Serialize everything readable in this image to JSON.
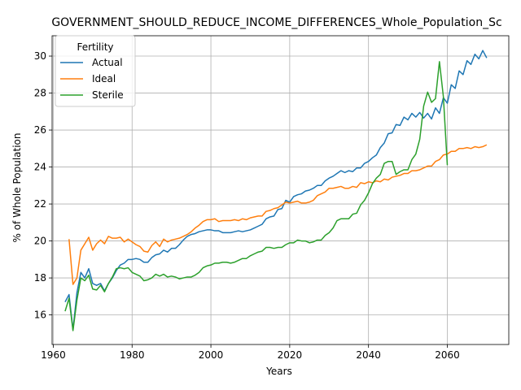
{
  "chart_data": {
    "type": "line",
    "title": "GOVERNMENT_SHOULD_REDUCE_INCOME_DIFFERENCES_Whole_Population_Sc",
    "xlabel": "Years",
    "ylabel": "% of Whole Population",
    "xlim": [
      1959.7,
      2075.6
    ],
    "ylim": [
      14.4,
      31.1
    ],
    "xticks": [
      1960,
      1980,
      2000,
      2020,
      2040,
      2060
    ],
    "yticks": [
      16,
      18,
      20,
      22,
      24,
      26,
      28,
      30
    ],
    "grid": true,
    "legend": {
      "title": "Fertility",
      "position": "top-left"
    },
    "series": [
      {
        "name": "Actual",
        "color": "#1f77b4",
        "points": [
          [
            1963,
            16.7
          ],
          [
            1964,
            17.1
          ],
          [
            1965,
            15.2
          ],
          [
            1966,
            17.2
          ],
          [
            1967,
            18.3
          ],
          [
            1968,
            18.0
          ],
          [
            1969,
            18.5
          ],
          [
            1970,
            17.7
          ],
          [
            1971,
            17.6
          ],
          [
            1972,
            17.7
          ],
          [
            1973,
            17.3
          ],
          [
            1974,
            17.7
          ],
          [
            1975,
            18.0
          ],
          [
            1976,
            18.4
          ],
          [
            1977,
            18.7
          ],
          [
            1978,
            18.8
          ],
          [
            1979,
            19.0
          ],
          [
            1980,
            19.0
          ],
          [
            1981,
            19.05
          ],
          [
            1982,
            19.0
          ],
          [
            1983,
            18.85
          ],
          [
            1984,
            18.85
          ],
          [
            1985,
            19.1
          ],
          [
            1986,
            19.25
          ],
          [
            1987,
            19.3
          ],
          [
            1988,
            19.5
          ],
          [
            1989,
            19.4
          ],
          [
            1990,
            19.6
          ],
          [
            1991,
            19.6
          ],
          [
            1992,
            19.8
          ],
          [
            1993,
            20.05
          ],
          [
            1994,
            20.25
          ],
          [
            1995,
            20.35
          ],
          [
            1996,
            20.4
          ],
          [
            1997,
            20.5
          ],
          [
            1998,
            20.55
          ],
          [
            1999,
            20.6
          ],
          [
            2000,
            20.6
          ],
          [
            2001,
            20.55
          ],
          [
            2002,
            20.55
          ],
          [
            2003,
            20.45
          ],
          [
            2004,
            20.45
          ],
          [
            2005,
            20.45
          ],
          [
            2006,
            20.5
          ],
          [
            2007,
            20.55
          ],
          [
            2008,
            20.5
          ],
          [
            2009,
            20.55
          ],
          [
            2010,
            20.6
          ],
          [
            2011,
            20.7
          ],
          [
            2012,
            20.8
          ],
          [
            2013,
            20.9
          ],
          [
            2014,
            21.2
          ],
          [
            2015,
            21.3
          ],
          [
            2016,
            21.35
          ],
          [
            2017,
            21.7
          ],
          [
            2018,
            21.75
          ],
          [
            2019,
            22.2
          ],
          [
            2020,
            22.1
          ],
          [
            2021,
            22.4
          ],
          [
            2022,
            22.5
          ],
          [
            2023,
            22.55
          ],
          [
            2024,
            22.7
          ],
          [
            2025,
            22.75
          ],
          [
            2026,
            22.85
          ],
          [
            2027,
            23.0
          ],
          [
            2028,
            23.0
          ],
          [
            2029,
            23.25
          ],
          [
            2030,
            23.4
          ],
          [
            2031,
            23.5
          ],
          [
            2032,
            23.65
          ],
          [
            2033,
            23.8
          ],
          [
            2034,
            23.7
          ],
          [
            2035,
            23.8
          ],
          [
            2036,
            23.75
          ],
          [
            2037,
            23.95
          ],
          [
            2038,
            23.95
          ],
          [
            2039,
            24.2
          ],
          [
            2040,
            24.3
          ],
          [
            2041,
            24.5
          ],
          [
            2042,
            24.65
          ],
          [
            2043,
            25.05
          ],
          [
            2044,
            25.3
          ],
          [
            2045,
            25.8
          ],
          [
            2046,
            25.85
          ],
          [
            2047,
            26.3
          ],
          [
            2048,
            26.25
          ],
          [
            2049,
            26.7
          ],
          [
            2050,
            26.55
          ],
          [
            2051,
            26.9
          ],
          [
            2052,
            26.7
          ],
          [
            2053,
            26.95
          ],
          [
            2054,
            26.65
          ],
          [
            2055,
            26.9
          ],
          [
            2056,
            26.6
          ],
          [
            2057,
            27.2
          ],
          [
            2058,
            26.9
          ],
          [
            2059,
            27.75
          ],
          [
            2060,
            27.45
          ],
          [
            2061,
            28.45
          ],
          [
            2062,
            28.25
          ],
          [
            2063,
            29.2
          ],
          [
            2064,
            29.0
          ],
          [
            2065,
            29.75
          ],
          [
            2066,
            29.55
          ],
          [
            2067,
            30.1
          ],
          [
            2068,
            29.85
          ],
          [
            2069,
            30.3
          ],
          [
            2070,
            29.9
          ]
        ]
      },
      {
        "name": "Ideal",
        "color": "#ff7f0e",
        "points": [
          [
            1964,
            20.1
          ],
          [
            1965,
            17.65
          ],
          [
            1966,
            18.0
          ],
          [
            1967,
            19.5
          ],
          [
            1968,
            19.85
          ],
          [
            1969,
            20.2
          ],
          [
            1970,
            19.5
          ],
          [
            1971,
            19.85
          ],
          [
            1972,
            20.05
          ],
          [
            1973,
            19.85
          ],
          [
            1974,
            20.25
          ],
          [
            1975,
            20.15
          ],
          [
            1976,
            20.15
          ],
          [
            1977,
            20.2
          ],
          [
            1978,
            19.95
          ],
          [
            1979,
            20.1
          ],
          [
            1980,
            19.95
          ],
          [
            1981,
            19.8
          ],
          [
            1982,
            19.7
          ],
          [
            1983,
            19.45
          ],
          [
            1984,
            19.4
          ],
          [
            1985,
            19.75
          ],
          [
            1986,
            19.95
          ],
          [
            1987,
            19.7
          ],
          [
            1988,
            20.1
          ],
          [
            1989,
            19.95
          ],
          [
            1990,
            20.05
          ],
          [
            1991,
            20.1
          ],
          [
            1992,
            20.15
          ],
          [
            1993,
            20.25
          ],
          [
            1994,
            20.35
          ],
          [
            1995,
            20.5
          ],
          [
            1996,
            20.7
          ],
          [
            1997,
            20.85
          ],
          [
            1998,
            21.05
          ],
          [
            1999,
            21.15
          ],
          [
            2000,
            21.15
          ],
          [
            2001,
            21.2
          ],
          [
            2002,
            21.05
          ],
          [
            2003,
            21.1
          ],
          [
            2004,
            21.1
          ],
          [
            2005,
            21.1
          ],
          [
            2006,
            21.15
          ],
          [
            2007,
            21.1
          ],
          [
            2008,
            21.2
          ],
          [
            2009,
            21.15
          ],
          [
            2010,
            21.25
          ],
          [
            2011,
            21.3
          ],
          [
            2012,
            21.35
          ],
          [
            2013,
            21.35
          ],
          [
            2014,
            21.6
          ],
          [
            2015,
            21.65
          ],
          [
            2016,
            21.75
          ],
          [
            2017,
            21.8
          ],
          [
            2018,
            21.95
          ],
          [
            2019,
            22.1
          ],
          [
            2020,
            22.05
          ],
          [
            2021,
            22.1
          ],
          [
            2022,
            22.15
          ],
          [
            2023,
            22.05
          ],
          [
            2024,
            22.05
          ],
          [
            2025,
            22.1
          ],
          [
            2026,
            22.2
          ],
          [
            2027,
            22.45
          ],
          [
            2028,
            22.55
          ],
          [
            2029,
            22.65
          ],
          [
            2030,
            22.85
          ],
          [
            2031,
            22.85
          ],
          [
            2032,
            22.9
          ],
          [
            2033,
            22.95
          ],
          [
            2034,
            22.85
          ],
          [
            2035,
            22.85
          ],
          [
            2036,
            22.95
          ],
          [
            2037,
            22.9
          ],
          [
            2038,
            23.15
          ],
          [
            2039,
            23.1
          ],
          [
            2040,
            23.2
          ],
          [
            2041,
            23.15
          ],
          [
            2042,
            23.25
          ],
          [
            2043,
            23.2
          ],
          [
            2044,
            23.35
          ],
          [
            2045,
            23.3
          ],
          [
            2046,
            23.45
          ],
          [
            2047,
            23.5
          ],
          [
            2048,
            23.55
          ],
          [
            2049,
            23.65
          ],
          [
            2050,
            23.65
          ],
          [
            2051,
            23.8
          ],
          [
            2052,
            23.8
          ],
          [
            2053,
            23.85
          ],
          [
            2054,
            23.95
          ],
          [
            2055,
            24.05
          ],
          [
            2056,
            24.05
          ],
          [
            2057,
            24.3
          ],
          [
            2058,
            24.4
          ],
          [
            2059,
            24.65
          ],
          [
            2060,
            24.7
          ],
          [
            2061,
            24.85
          ],
          [
            2062,
            24.85
          ],
          [
            2063,
            25.0
          ],
          [
            2064,
            25.0
          ],
          [
            2065,
            25.05
          ],
          [
            2066,
            25.0
          ],
          [
            2067,
            25.1
          ],
          [
            2068,
            25.05
          ],
          [
            2069,
            25.1
          ],
          [
            2070,
            25.2
          ]
        ]
      },
      {
        "name": "Sterile",
        "color": "#2ca02c",
        "points": [
          [
            1963,
            16.2
          ],
          [
            1964,
            16.9
          ],
          [
            1965,
            15.15
          ],
          [
            1966,
            16.8
          ],
          [
            1967,
            18.0
          ],
          [
            1968,
            17.85
          ],
          [
            1969,
            18.15
          ],
          [
            1970,
            17.4
          ],
          [
            1971,
            17.35
          ],
          [
            1972,
            17.6
          ],
          [
            1973,
            17.25
          ],
          [
            1974,
            17.7
          ],
          [
            1975,
            18.05
          ],
          [
            1976,
            18.5
          ],
          [
            1977,
            18.55
          ],
          [
            1978,
            18.5
          ],
          [
            1979,
            18.55
          ],
          [
            1980,
            18.3
          ],
          [
            1981,
            18.2
          ],
          [
            1982,
            18.1
          ],
          [
            1983,
            17.85
          ],
          [
            1984,
            17.9
          ],
          [
            1985,
            18.0
          ],
          [
            1986,
            18.2
          ],
          [
            1987,
            18.1
          ],
          [
            1988,
            18.2
          ],
          [
            1989,
            18.05
          ],
          [
            1990,
            18.1
          ],
          [
            1991,
            18.05
          ],
          [
            1992,
            17.95
          ],
          [
            1993,
            18.0
          ],
          [
            1994,
            18.05
          ],
          [
            1995,
            18.05
          ],
          [
            1996,
            18.15
          ],
          [
            1997,
            18.3
          ],
          [
            1998,
            18.55
          ],
          [
            1999,
            18.65
          ],
          [
            2000,
            18.7
          ],
          [
            2001,
            18.8
          ],
          [
            2002,
            18.8
          ],
          [
            2003,
            18.85
          ],
          [
            2004,
            18.85
          ],
          [
            2005,
            18.8
          ],
          [
            2006,
            18.85
          ],
          [
            2007,
            18.95
          ],
          [
            2008,
            19.05
          ],
          [
            2009,
            19.05
          ],
          [
            2010,
            19.2
          ],
          [
            2011,
            19.3
          ],
          [
            2012,
            19.4
          ],
          [
            2013,
            19.45
          ],
          [
            2014,
            19.65
          ],
          [
            2015,
            19.65
          ],
          [
            2016,
            19.6
          ],
          [
            2017,
            19.65
          ],
          [
            2018,
            19.65
          ],
          [
            2019,
            19.8
          ],
          [
            2020,
            19.9
          ],
          [
            2021,
            19.9
          ],
          [
            2022,
            20.05
          ],
          [
            2023,
            20.0
          ],
          [
            2024,
            20.0
          ],
          [
            2025,
            19.9
          ],
          [
            2026,
            19.95
          ],
          [
            2027,
            20.05
          ],
          [
            2028,
            20.05
          ],
          [
            2029,
            20.3
          ],
          [
            2030,
            20.45
          ],
          [
            2031,
            20.7
          ],
          [
            2032,
            21.1
          ],
          [
            2033,
            21.2
          ],
          [
            2034,
            21.2
          ],
          [
            2035,
            21.2
          ],
          [
            2036,
            21.45
          ],
          [
            2037,
            21.5
          ],
          [
            2038,
            21.95
          ],
          [
            2039,
            22.2
          ],
          [
            2040,
            22.6
          ],
          [
            2041,
            23.1
          ],
          [
            2042,
            23.4
          ],
          [
            2043,
            23.6
          ],
          [
            2044,
            24.2
          ],
          [
            2045,
            24.3
          ],
          [
            2046,
            24.3
          ],
          [
            2047,
            23.6
          ],
          [
            2048,
            23.75
          ],
          [
            2049,
            23.85
          ],
          [
            2050,
            23.85
          ],
          [
            2051,
            24.4
          ],
          [
            2052,
            24.7
          ],
          [
            2053,
            25.5
          ],
          [
            2054,
            27.3
          ],
          [
            2055,
            28.05
          ],
          [
            2056,
            27.5
          ],
          [
            2057,
            27.7
          ],
          [
            2058,
            29.7
          ],
          [
            2059,
            27.8
          ],
          [
            2060,
            24.1
          ]
        ]
      }
    ]
  }
}
